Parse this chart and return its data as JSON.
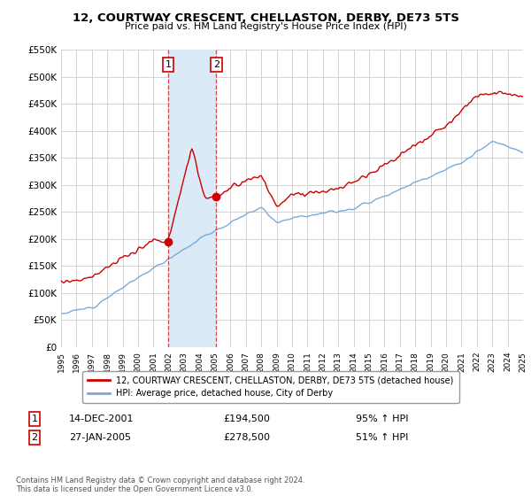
{
  "title": "12, COURTWAY CRESCENT, CHELLASTON, DERBY, DE73 5TS",
  "subtitle": "Price paid vs. HM Land Registry's House Price Index (HPI)",
  "legend_line1": "12, COURTWAY CRESCENT, CHELLASTON, DERBY, DE73 5TS (detached house)",
  "legend_line2": "HPI: Average price, detached house, City of Derby",
  "red_line_color": "#cc0000",
  "blue_line_color": "#7aaadd",
  "shade_color": "#daeaf7",
  "grid_color": "#cccccc",
  "ylim": [
    0,
    550000
  ],
  "yticks": [
    0,
    50000,
    100000,
    150000,
    200000,
    250000,
    300000,
    350000,
    400000,
    450000,
    500000,
    550000
  ],
  "ytick_labels": [
    "£0",
    "£50K",
    "£100K",
    "£150K",
    "£200K",
    "£250K",
    "£300K",
    "£350K",
    "£400K",
    "£450K",
    "£500K",
    "£550K"
  ],
  "sale1_year": 2001.95,
  "sale1_price": 194500,
  "sale1_label": "1",
  "sale1_date": "14-DEC-2001",
  "sale1_price_str": "£194,500",
  "sale1_hpi": "95% ↑ HPI",
  "sale2_year": 2005.07,
  "sale2_price": 278500,
  "sale2_label": "2",
  "sale2_date": "27-JAN-2005",
  "sale2_price_str": "£278,500",
  "sale2_hpi": "51% ↑ HPI",
  "footer": "Contains HM Land Registry data © Crown copyright and database right 2024.\nThis data is licensed under the Open Government Licence v3.0.",
  "bg_color": "#ffffff"
}
